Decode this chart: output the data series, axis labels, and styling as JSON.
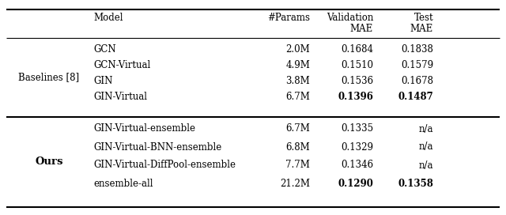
{
  "header_row1": [
    "Model",
    "#Params",
    "Validation",
    "Test"
  ],
  "header_row2": [
    "",
    "",
    "MAE",
    "MAE"
  ],
  "section1_label": "Baselines [8]",
  "section1_rows": [
    {
      "model": "GCN",
      "params": "2.0M",
      "val": "0.1684",
      "test": "0.1838",
      "val_bold": false,
      "test_bold": false
    },
    {
      "model": "GCN-Virtual",
      "params": "4.9M",
      "val": "0.1510",
      "test": "0.1579",
      "val_bold": false,
      "test_bold": false
    },
    {
      "model": "GIN",
      "params": "3.8M",
      "val": "0.1536",
      "test": "0.1678",
      "val_bold": false,
      "test_bold": false
    },
    {
      "model": "GIN-Virtual",
      "params": "6.7M",
      "val": "0.1396",
      "test": "0.1487",
      "val_bold": true,
      "test_bold": true
    }
  ],
  "section2_label": "Ours",
  "section2_rows": [
    {
      "model": "GIN-Virtual-ensemble",
      "params": "6.7M",
      "val": "0.1335",
      "test": "n/a",
      "val_bold": false,
      "test_bold": false
    },
    {
      "model": "GIN-Virtual-BNN-ensemble",
      "params": "6.8M",
      "val": "0.1329",
      "test": "n/a",
      "val_bold": false,
      "test_bold": false
    },
    {
      "model": "GIN-Virtual-DiffPool-ensemble",
      "params": "7.7M",
      "val": "0.1346",
      "test": "n/a",
      "val_bold": false,
      "test_bold": false
    },
    {
      "model": "ensemble-all",
      "params": "21.2M",
      "val": "0.1290",
      "test": "0.1358",
      "val_bold": true,
      "test_bold": true
    }
  ],
  "figsize": [
    6.4,
    2.72
  ],
  "dpi": 100,
  "font_size": 8.5
}
